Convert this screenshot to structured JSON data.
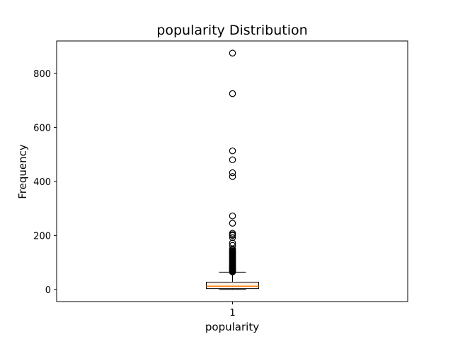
{
  "chart_data": {
    "type": "box",
    "title": "popularity Distribution",
    "xlabel": "popularity",
    "ylabel": "Frequency",
    "categories": [
      "1"
    ],
    "ylim": [
      -45,
      920
    ],
    "yticks": [
      0,
      200,
      400,
      600,
      800
    ],
    "ytick_labels": [
      "0",
      "200",
      "400",
      "600",
      "800"
    ],
    "grid": false,
    "colors": {
      "box_edge": "#000000",
      "median": "#ff7f0e",
      "box_fill": "#fdf3e7",
      "outlier_edge": "#000000"
    },
    "boxes": [
      {
        "category": "1",
        "min": 0,
        "q1": 3,
        "median": 12,
        "q3": 27,
        "max": 64,
        "outliers": [
          875,
          725,
          513,
          480,
          432,
          418,
          272,
          245,
          208,
          203,
          200,
          192,
          172,
          163,
          150,
          147,
          143,
          140,
          137,
          135,
          132,
          130,
          127,
          124,
          121,
          118,
          115,
          112,
          109,
          106,
          103,
          100,
          97,
          94,
          91,
          88,
          86,
          84,
          82,
          80,
          78,
          76,
          74,
          72,
          70,
          68,
          66,
          65
        ]
      }
    ]
  }
}
